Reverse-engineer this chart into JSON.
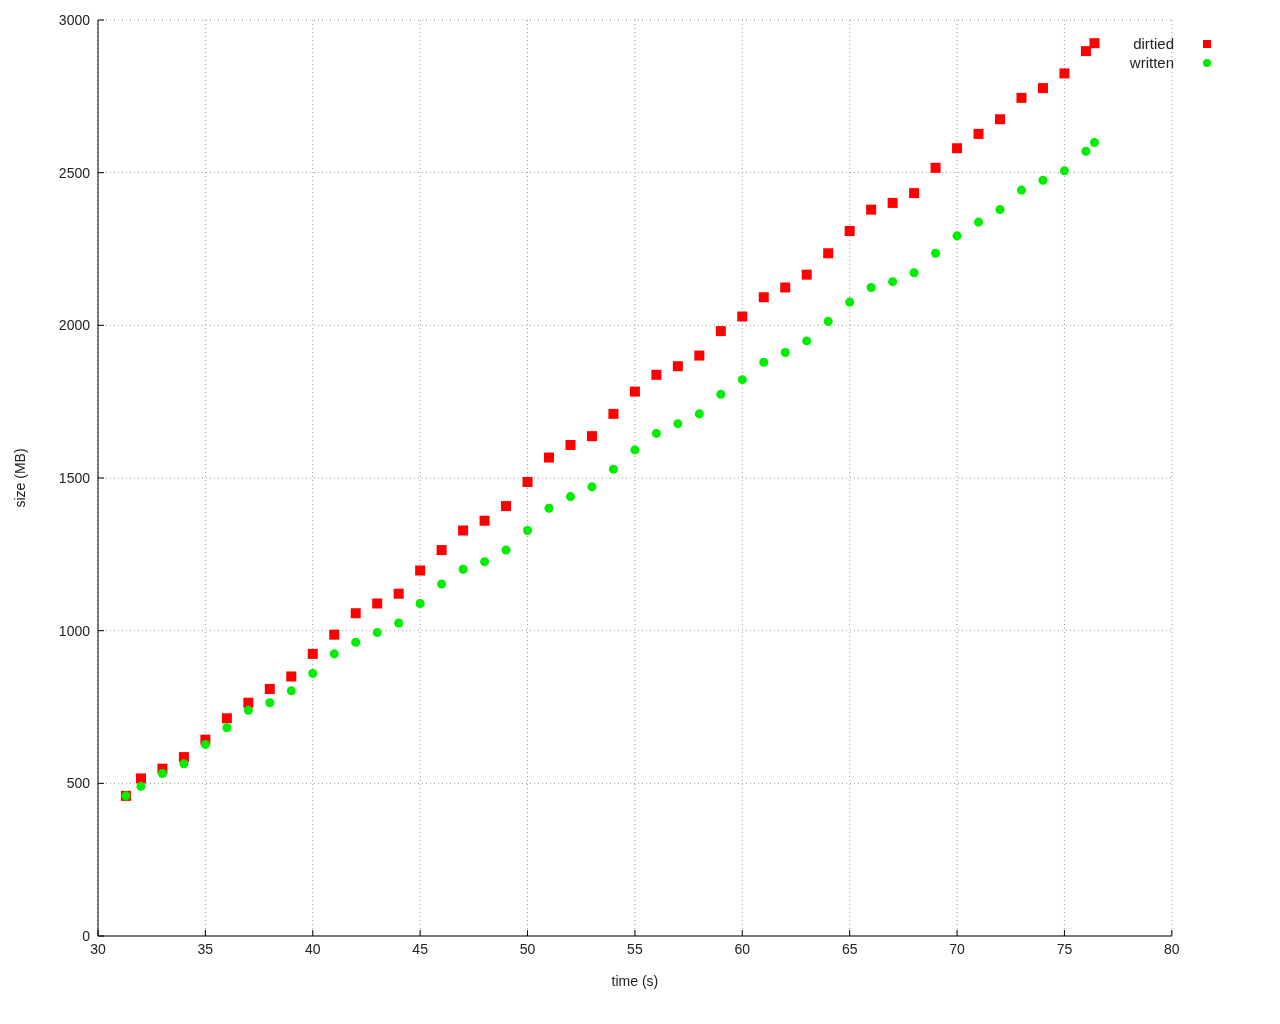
{
  "chart_data": {
    "type": "scatter",
    "xlabel": "time (s)",
    "ylabel": "size (MB)",
    "xlim": [
      30,
      80
    ],
    "xticks": [
      30,
      35,
      40,
      45,
      50,
      55,
      60,
      65,
      70,
      75,
      80
    ],
    "ylim": [
      0,
      3000
    ],
    "yticks": [
      0,
      500,
      1000,
      1500,
      2000,
      2500,
      3000
    ],
    "grid": true,
    "legend": "top right",
    "series": [
      {
        "name": "dirtied",
        "color": "#ff0000",
        "marker": "square",
        "x": [
          31.3,
          32,
          33,
          34,
          35,
          36,
          37,
          38,
          39,
          40,
          41,
          42,
          43,
          44,
          45,
          46,
          47,
          48,
          49,
          50,
          51,
          52,
          53,
          54,
          55,
          56,
          57,
          58,
          59,
          60,
          61,
          62,
          63,
          64,
          65,
          66,
          67,
          68,
          69,
          70,
          71,
          72,
          73,
          74,
          75,
          76,
          76.4
        ],
        "values": [
          459,
          516,
          548,
          586,
          643,
          713,
          764,
          809,
          850,
          924,
          987,
          1057,
          1089,
          1121,
          1197,
          1264,
          1328,
          1360,
          1408,
          1487,
          1567,
          1608,
          1637,
          1710,
          1783,
          1838,
          1866,
          1901,
          1981,
          2029,
          2092,
          2124,
          2166,
          2236,
          2309,
          2379,
          2401,
          2433,
          2516,
          2580,
          2627,
          2675,
          2745,
          2777,
          2825,
          2898,
          2924
        ]
      },
      {
        "name": "written",
        "color": "#00ee00",
        "marker": "circle",
        "x": [
          31.3,
          32,
          33,
          34,
          35,
          36,
          37,
          38,
          39,
          40,
          41,
          42,
          43,
          44,
          45,
          46,
          47,
          48,
          49,
          50,
          51,
          52,
          53,
          54,
          55,
          56,
          57,
          58,
          59,
          60,
          61,
          62,
          63,
          64,
          65,
          66,
          67,
          68,
          69,
          70,
          71,
          72,
          73,
          74,
          75,
          76,
          76.4
        ],
        "values": [
          459,
          490,
          532,
          564,
          627,
          682,
          739,
          764,
          803,
          860,
          924,
          962,
          994,
          1025,
          1089,
          1153,
          1201,
          1226,
          1264,
          1328,
          1401,
          1439,
          1471,
          1529,
          1592,
          1646,
          1678,
          1710,
          1774,
          1822,
          1879,
          1911,
          1949,
          2013,
          2076,
          2124,
          2143,
          2172,
          2236,
          2293,
          2338,
          2379,
          2443,
          2475,
          2506,
          2570,
          2599
        ]
      }
    ]
  }
}
